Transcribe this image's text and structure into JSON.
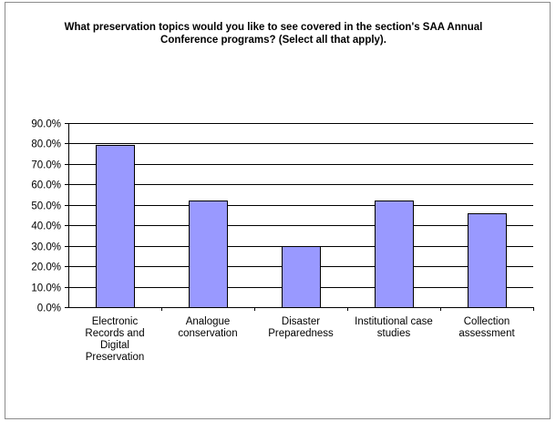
{
  "chart_data": {
    "type": "bar",
    "title": "What preservation topics would you like to see covered in the section's SAA Annual Conference programs? (Select all that apply).",
    "categories": [
      [
        "Electronic",
        "Records and",
        "Digital",
        "Preservation"
      ],
      [
        "Analogue",
        "conservation"
      ],
      [
        "Disaster",
        "Preparedness"
      ],
      [
        "Institutional case",
        "studies"
      ],
      [
        "Collection",
        "assessment"
      ]
    ],
    "values": [
      79.4,
      52.1,
      30.0,
      52.1,
      45.8
    ],
    "ylim": [
      0,
      90
    ],
    "yticks": [
      "0.0%",
      "10.0%",
      "20.0%",
      "30.0%",
      "40.0%",
      "50.0%",
      "60.0%",
      "70.0%",
      "80.0%",
      "90.0%"
    ],
    "xlabel": "",
    "ylabel": "",
    "grid": true,
    "bar_color": "#9999ff",
    "bar_border_color": "#000000",
    "gridline_color": "#000000"
  }
}
